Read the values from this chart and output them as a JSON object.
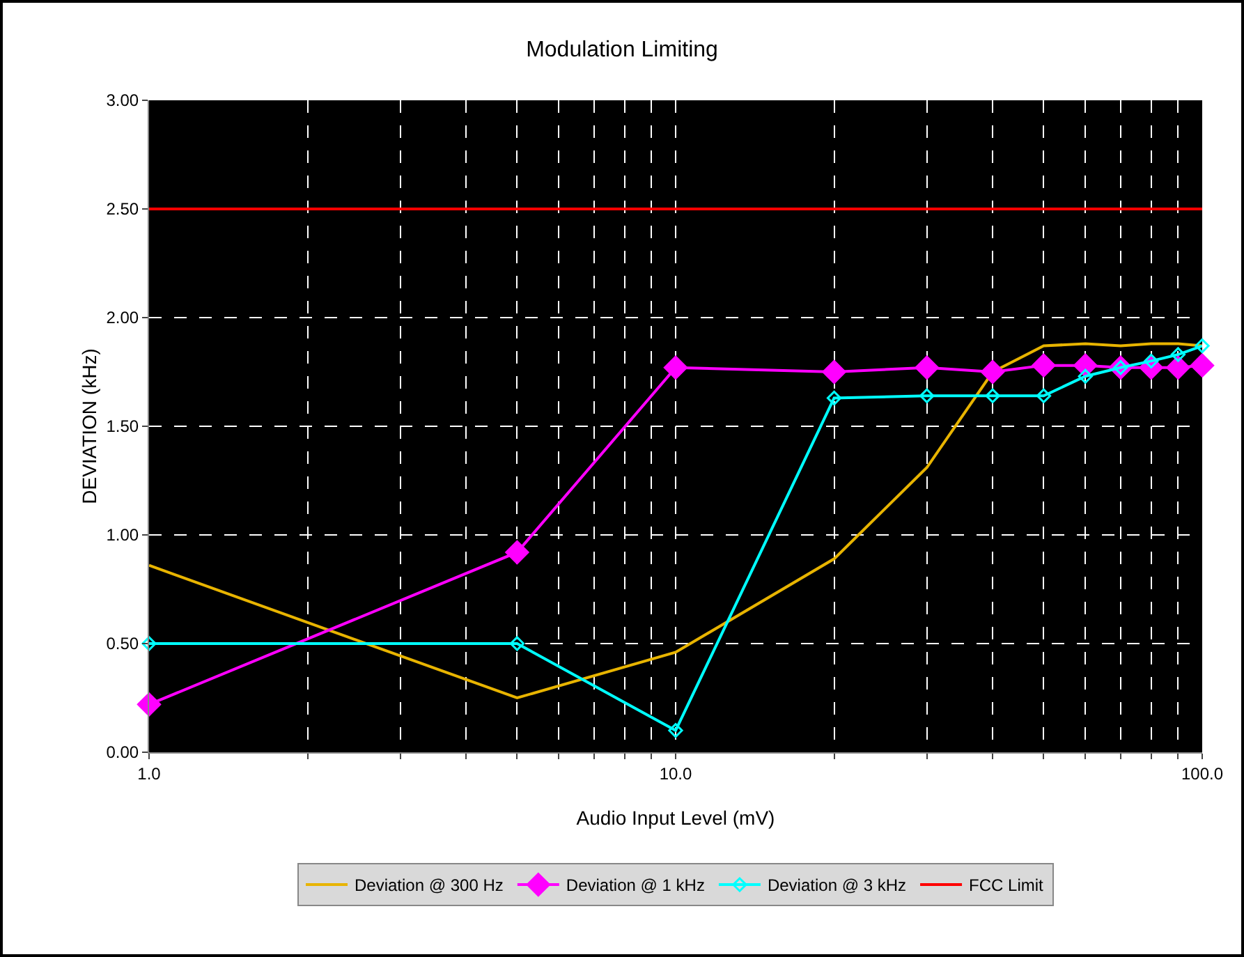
{
  "chart_data": {
    "type": "line",
    "title": "Modulation Limiting",
    "xlabel": "Audio Input Level (mV)",
    "ylabel": "DEVIATION (kHz)",
    "log": "x",
    "x": [
      1,
      5,
      10,
      20,
      30,
      40,
      50,
      60,
      70,
      80,
      90,
      100
    ],
    "series": [
      {
        "name": "Deviation @ 300 Hz",
        "color": "#e8b400",
        "marker": "none",
        "values": [
          0.86,
          0.25,
          0.46,
          0.89,
          1.31,
          1.75,
          1.87,
          1.88,
          1.87,
          1.88,
          1.88,
          1.87
        ]
      },
      {
        "name": "Deviation @ 1 kHz",
        "color": "#ff00ff",
        "marker": "diamond",
        "values": [
          0.22,
          0.92,
          1.77,
          1.75,
          1.77,
          1.75,
          1.78,
          1.78,
          1.77,
          1.77,
          1.77,
          1.78
        ]
      },
      {
        "name": "Deviation @ 3 kHz",
        "color": "#00ffff",
        "marker": "diamond-open",
        "values": [
          0.5,
          0.5,
          0.1,
          1.63,
          1.64,
          1.64,
          1.64,
          1.73,
          1.77,
          1.8,
          1.83,
          1.87
        ]
      }
    ],
    "ref_lines": [
      {
        "axis": "y",
        "value": 2.5,
        "label": "FCC Limit",
        "color": "#ff0000"
      }
    ],
    "xlim": [
      1,
      100
    ],
    "xticks": [
      {
        "value": 1,
        "label": "1.0"
      },
      {
        "value": 2,
        "label": null
      },
      {
        "value": 3,
        "label": null
      },
      {
        "value": 4,
        "label": null
      },
      {
        "value": 5,
        "label": null
      },
      {
        "value": 6,
        "label": null
      },
      {
        "value": 7,
        "label": null
      },
      {
        "value": 8,
        "label": null
      },
      {
        "value": 9,
        "label": null
      },
      {
        "value": 10,
        "label": "10.0"
      },
      {
        "value": 20,
        "label": null
      },
      {
        "value": 30,
        "label": null
      },
      {
        "value": 40,
        "label": null
      },
      {
        "value": 50,
        "label": null
      },
      {
        "value": 60,
        "label": null
      },
      {
        "value": 70,
        "label": null
      },
      {
        "value": 80,
        "label": null
      },
      {
        "value": 90,
        "label": null
      },
      {
        "value": 100,
        "label": "100.0"
      }
    ],
    "ylim": [
      0,
      3
    ],
    "yticks": [
      {
        "value": 0,
        "label": "0.00"
      },
      {
        "value": 0.5,
        "label": "0.50"
      },
      {
        "value": 1,
        "label": "1.00"
      },
      {
        "value": 1.5,
        "label": "1.50"
      },
      {
        "value": 2,
        "label": "2.00"
      },
      {
        "value": 2.5,
        "label": "2.50"
      },
      {
        "value": 3,
        "label": "3.00"
      }
    ],
    "grid": true,
    "legend": "bottom",
    "line_style": "solid"
  }
}
